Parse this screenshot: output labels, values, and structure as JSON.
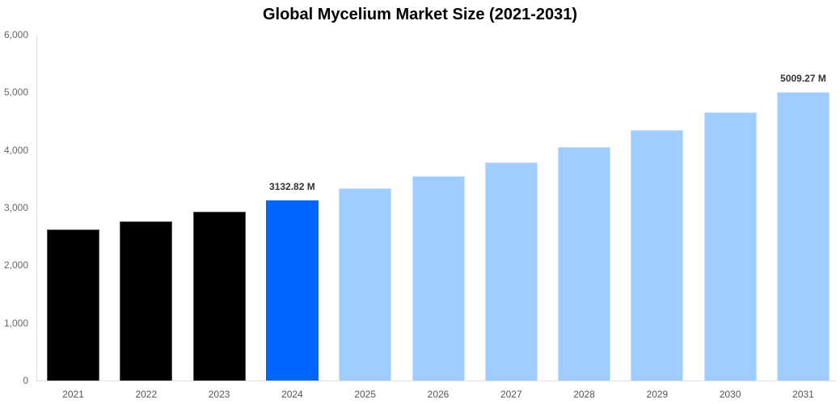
{
  "chart_data": {
    "type": "bar",
    "title": "Global Mycelium Market Size (2021-2031)",
    "xlabel": "",
    "ylabel": "",
    "ylim": [
      0,
      6000
    ],
    "yticks": [
      "0",
      "1,000",
      "2,000",
      "3,000",
      "4,000",
      "5,000",
      "6,000"
    ],
    "grid": false,
    "legend": null,
    "categories": [
      "2021",
      "2022",
      "2023",
      "2024",
      "2025",
      "2026",
      "2027",
      "2028",
      "2029",
      "2030",
      "2031"
    ],
    "values": [
      2622,
      2762,
      2930,
      3132.82,
      3337,
      3547,
      3785,
      4052,
      4346,
      4654,
      5009.27
    ],
    "bar_kinds": [
      "historical",
      "historical",
      "historical",
      "current",
      "forecast",
      "forecast",
      "forecast",
      "forecast",
      "forecast",
      "forecast",
      "forecast"
    ],
    "data_labels": [
      {
        "category": "2024",
        "text": "3132.82 M"
      },
      {
        "category": "2031",
        "text": "5009.27 M"
      }
    ],
    "colors": {
      "historical": "#000000",
      "current": "#0066ff",
      "forecast": "#a0cdff"
    }
  }
}
